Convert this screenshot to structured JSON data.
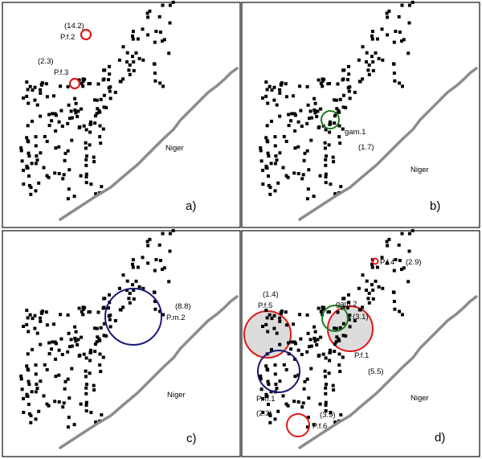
{
  "river_label": "Niger",
  "colors": {
    "frame": "#111111",
    "river": "#8c8c8c",
    "point": "#000000",
    "red_circle": "#e01818",
    "green_circle": "#1a7a1a",
    "blue_circle": "#1a1a7a",
    "cluster_fill": "#dcdcdc"
  },
  "panels": [
    {
      "id": "a",
      "label": "a)",
      "clusters": [
        {
          "name": "P.f.2",
          "value": "(14.2)",
          "color": "red_circle"
        },
        {
          "name": "P.f.3",
          "value": "(2.3)",
          "color": "red_circle"
        }
      ]
    },
    {
      "id": "b",
      "label": "b)",
      "clusters": [
        {
          "name": "gam.1",
          "value": "(1.7)",
          "color": "green_circle"
        }
      ]
    },
    {
      "id": "c",
      "label": "c)",
      "clusters": [
        {
          "name": "P.m.2",
          "value": "(8.8)",
          "color": "blue_circle"
        }
      ]
    },
    {
      "id": "d",
      "label": "d)",
      "clusters": [
        {
          "name": "P.f.4",
          "value": "(2.9)",
          "color": "red_circle"
        },
        {
          "name": "P.f.5",
          "value": "(1.4)",
          "color": "red_circle"
        },
        {
          "name": "gam.2",
          "value": "(3.1)",
          "color": "green_circle"
        },
        {
          "name": "P.f.1",
          "value": "(5.5)",
          "color": "red_circle"
        },
        {
          "name": "P.m.1",
          "value": "(2.3)",
          "color": "blue_circle"
        },
        {
          "name": "P.f.6",
          "value": "(3.9)",
          "color": "red_circle"
        }
      ]
    }
  ]
}
